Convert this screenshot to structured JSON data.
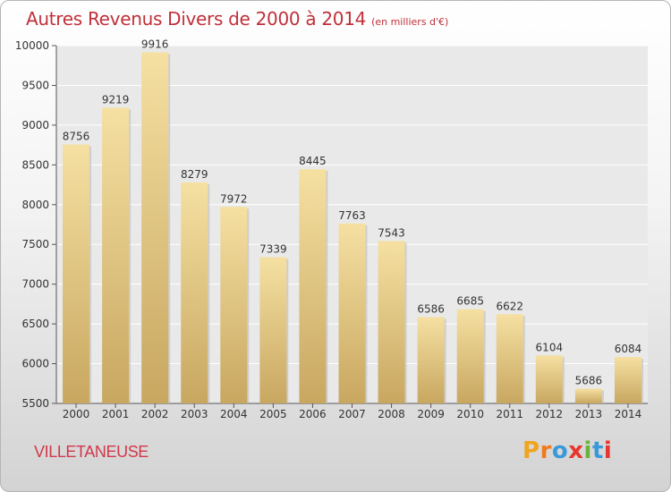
{
  "header": {
    "title": "Autres Revenus Divers de 2000 à 2014",
    "unit": "(en milliers d'€)"
  },
  "footer": {
    "city": "VILLETANEUSE",
    "logo_letters": [
      "P",
      "r",
      "o",
      "x",
      "i",
      "t",
      "i"
    ],
    "logo_colors": [
      "#f0a51e",
      "#f07a1e",
      "#3a9ad9",
      "#e8352e",
      "#6bb33c",
      "#3a9ad9",
      "#e8352e"
    ]
  },
  "colors": {
    "title": "#c0303a",
    "city": "#d2384a",
    "bar_light": "#f5e0a2",
    "bar_dark": "#c8a760"
  },
  "chart_data": {
    "type": "bar",
    "categories": [
      "2000",
      "2001",
      "2002",
      "2003",
      "2004",
      "2005",
      "2006",
      "2007",
      "2008",
      "2009",
      "2010",
      "2011",
      "2012",
      "2013",
      "2014"
    ],
    "values": [
      8756,
      9219,
      9916,
      8279,
      7972,
      7339,
      8445,
      7763,
      7543,
      6586,
      6685,
      6622,
      6104,
      5686,
      6084
    ],
    "ylim": [
      5500,
      10000
    ],
    "yticks": [
      5500,
      6000,
      6500,
      7000,
      7500,
      8000,
      8500,
      9000,
      9500,
      10000
    ],
    "grid": true
  }
}
